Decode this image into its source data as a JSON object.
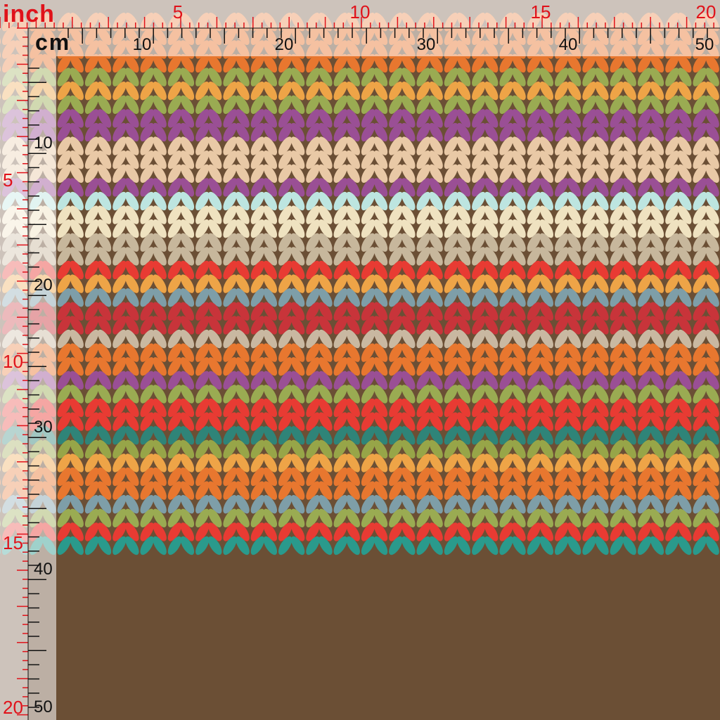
{
  "rulers": {
    "inch_unit": "inch",
    "cm_unit": "cm",
    "inch_top_labels": [
      "5",
      "10",
      "15",
      "20"
    ],
    "cm_top_labels": [
      "10",
      "20",
      "30",
      "40",
      "50"
    ],
    "inch_left_labels": [
      "5",
      "10",
      "15",
      "20"
    ],
    "cm_left_labels": [
      "10",
      "20",
      "30",
      "40",
      "50"
    ]
  },
  "colors": {
    "background_brown": "#6b4f35",
    "inch_red": "#e0121a",
    "cm_black": "#111111",
    "stripes": [
      "#e8772f",
      "#9aab52",
      "#eea447",
      "#9aab52",
      "#9a4f95",
      "#9a4f95",
      "#e9c9a6",
      "#e9c9a6",
      "#e9c9a6",
      "#9a4f95",
      "#bde5e0",
      "#efe2c0",
      "#efe2c0",
      "#c7b79c",
      "#c7b79c",
      "#e83b33",
      "#eea447",
      "#7e9ea8",
      "#c8343a",
      "#c8343a",
      "#c9b8a1",
      "#e8772f",
      "#e8772f",
      "#9a4f95",
      "#9aab52",
      "#e83b33",
      "#e83b33",
      "#2f8478",
      "#97a548",
      "#eea447",
      "#e8772f",
      "#e8772f",
      "#7e9ea8",
      "#9aab52",
      "#e83b33",
      "#2a9a8c"
    ]
  }
}
